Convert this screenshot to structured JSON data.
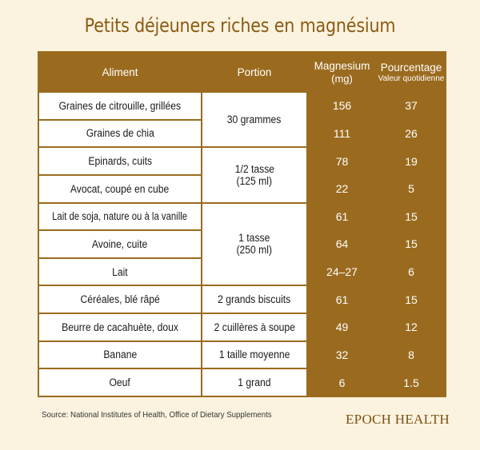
{
  "title": "Petits déjeuners riches en magnésium",
  "headers": {
    "food": "Aliment",
    "portion": "Portion",
    "magnesium": "Magnesium",
    "magnesium_unit": "(mg)",
    "percent": "Pourcentage",
    "percent_sub": "Valeur quotidienne"
  },
  "rows": [
    {
      "food": "Graines de citrouille, grillées",
      "magnesium": "156",
      "percent": "37"
    },
    {
      "food": "Graines de chia",
      "magnesium": "111",
      "percent": "26"
    },
    {
      "food": "Epinards, cuits",
      "magnesium": "78",
      "percent": "19"
    },
    {
      "food": "Avocat, coupé en cube",
      "magnesium": "22",
      "percent": "5"
    },
    {
      "food": "Lait de soja, nature ou à la vanille",
      "magnesium": "61",
      "percent": "15"
    },
    {
      "food": "Avoine, cuite",
      "magnesium": "64",
      "percent": "15"
    },
    {
      "food": "Lait",
      "magnesium": "24–27",
      "percent": "6"
    },
    {
      "food": "Céréales, blé râpé",
      "magnesium": "61",
      "percent": "15"
    },
    {
      "food": "Beurre de cacahuète, doux",
      "magnesium": "49",
      "percent": "12"
    },
    {
      "food": "Banane",
      "magnesium": "32",
      "percent": "8"
    },
    {
      "food": "Oeuf",
      "magnesium": "6",
      "percent": "1.5"
    }
  ],
  "portions": {
    "seeds": "30 grammes",
    "veg_line1": "1/2 tasse",
    "veg_line2": "(125 ml)",
    "liquid_line1": "1 tasse",
    "liquid_line2": "(250 ml)",
    "cereal": "2 grands biscuits",
    "peanut_butter": "2 cuillères à soupe",
    "banana": "1 taille moyenne",
    "egg": "1 grand"
  },
  "source": "Source: National Institutes of Health, Office of Dietary Supplements",
  "brand": {
    "text": "EPOCH HEALTH"
  },
  "colors": {
    "accent": "#9a6b1f",
    "title": "#8b5a14",
    "background": "#fbf3df"
  }
}
